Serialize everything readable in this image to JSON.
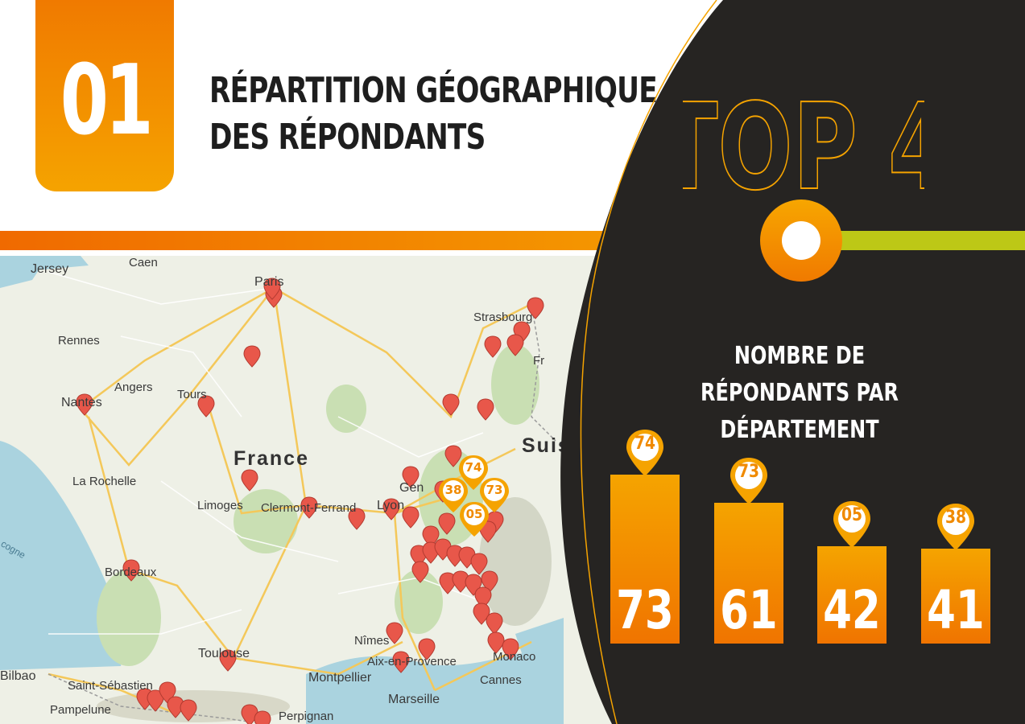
{
  "header": {
    "number": "01",
    "title_line1": "RÉPARTITION GÉOGRAPHIQUE",
    "title_line2": "DES RÉPONDANTS",
    "top_label": "TOP 4"
  },
  "colors": {
    "orange": "#f07a00",
    "amber": "#f5a300",
    "green": "#bdc816",
    "dark": "#262422",
    "pin": "#e8574a"
  },
  "map": {
    "country_label": "France",
    "places": [
      "Jersey",
      "Caen",
      "Paris",
      "Strasbourg",
      "Rennes",
      "Fr",
      "Angers",
      "Tours",
      "Nantes",
      "Suis",
      "La Rochelle",
      "Gen",
      "Limoges",
      "Clermont-Ferrand",
      "Lyon",
      "cogne",
      "Bordeaux",
      "Nîmes",
      "Toulouse",
      "Aix-en-Provence",
      "Monaco",
      "Montpellier",
      "Cannes",
      "Marseille",
      "Bilbao",
      "Saint-Sébastien",
      "Pampelune",
      "Perpignan"
    ],
    "pin_labels": [
      "74",
      "38",
      "73",
      "05"
    ]
  },
  "chart_data": {
    "type": "bar",
    "title": "NOMBRE DE RÉPONDANTS PAR DÉPARTEMENT",
    "categories": [
      "74",
      "73",
      "05",
      "38"
    ],
    "values": [
      73,
      61,
      42,
      41
    ],
    "ylim": [
      0,
      73
    ],
    "grid": false,
    "legend": "none"
  }
}
